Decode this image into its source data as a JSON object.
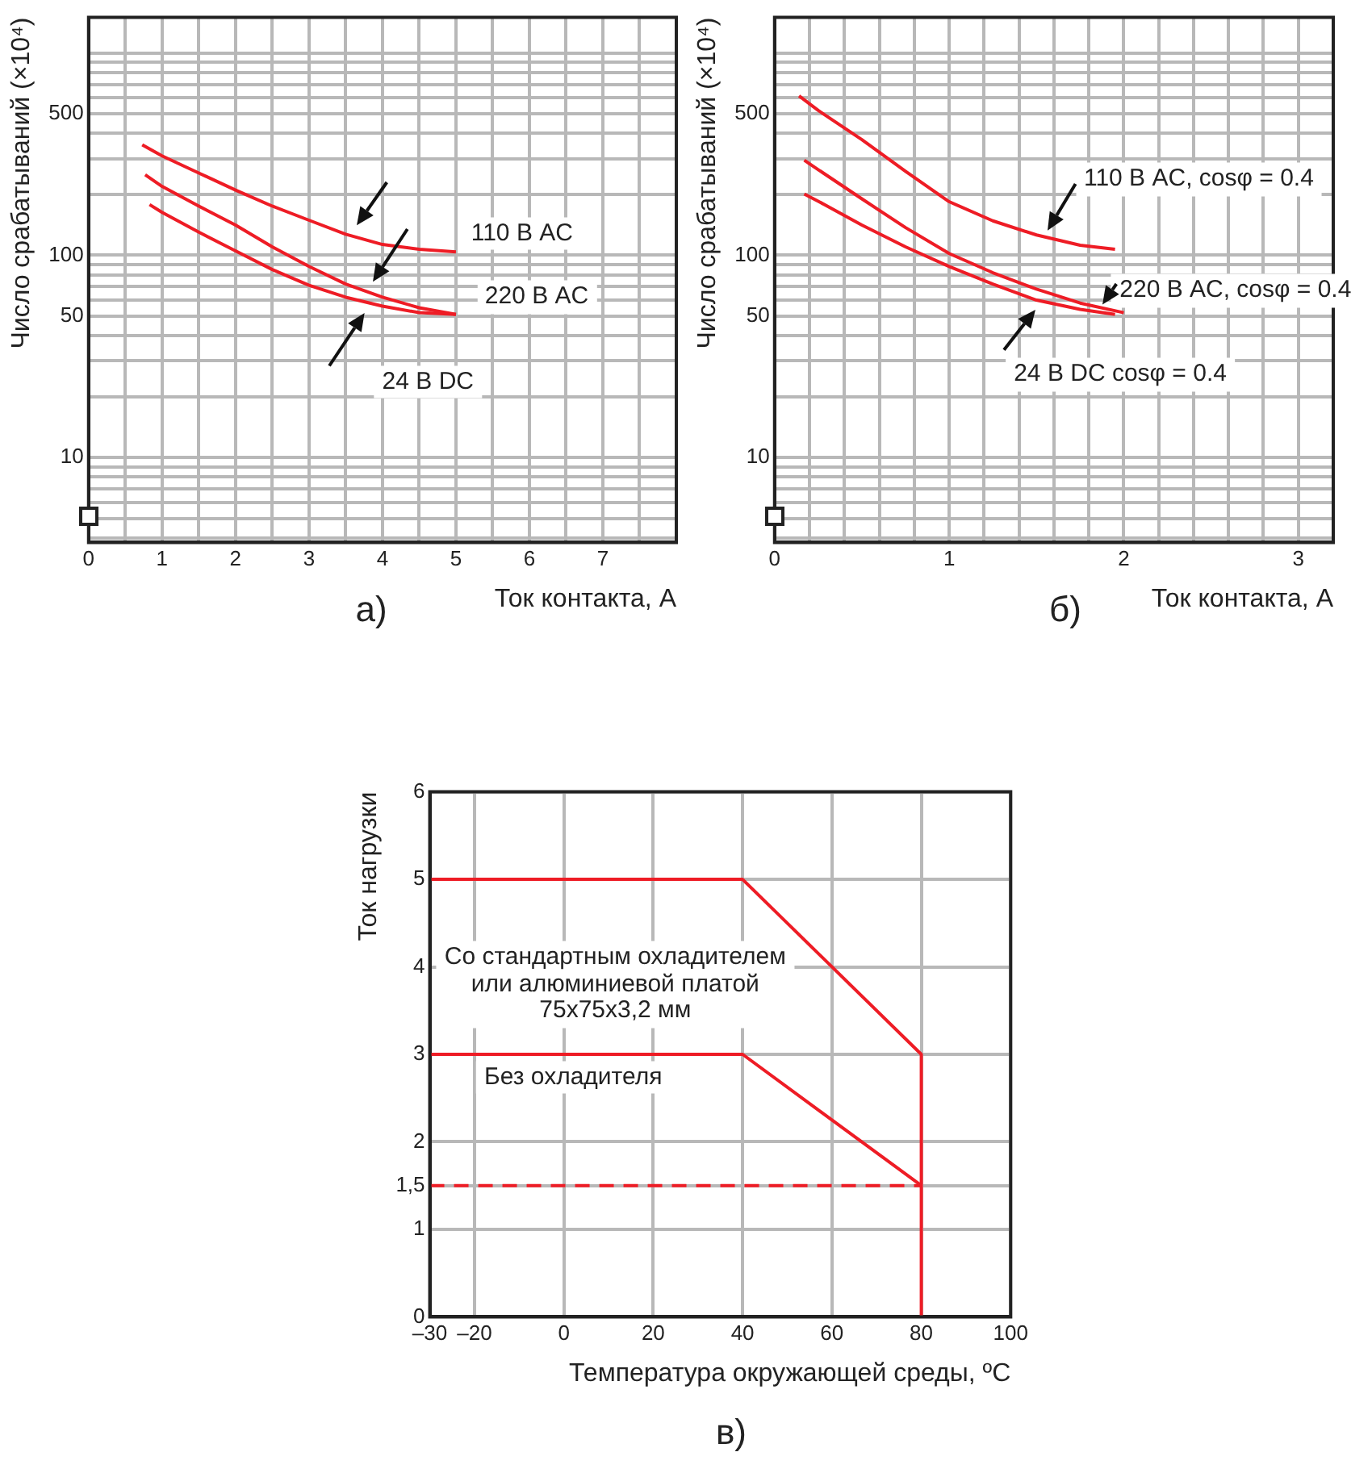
{
  "chart_data": [
    {
      "type": "line",
      "title": "а)",
      "xlabel": "Ток контакта, А",
      "ylabel": "Число срабатываний (×10⁴)",
      "log": "y",
      "grid": true,
      "legend": false,
      "marker": "none",
      "xlim": [
        0,
        8
      ],
      "xticks": [
        0,
        {
          "value": 0.5,
          "label": null
        },
        1,
        {
          "value": 1.5,
          "label": null
        },
        2,
        {
          "value": 2.5,
          "label": null
        },
        3,
        {
          "value": 3.5,
          "label": null
        },
        4,
        {
          "value": 4.5,
          "label": null
        },
        5,
        {
          "value": 5.5,
          "label": null
        },
        6,
        {
          "value": 6.5,
          "label": null
        },
        7,
        {
          "value": 7.5,
          "label": null
        },
        {
          "value": 8,
          "label": null
        }
      ],
      "ylim": [
        3.8,
        1500
      ],
      "yticks": [
        {
          "value": 4,
          "label": null
        },
        {
          "value": 5,
          "label": null
        },
        {
          "value": 6,
          "label": null
        },
        {
          "value": 7,
          "label": null
        },
        {
          "value": 8,
          "label": null
        },
        {
          "value": 9,
          "label": null
        },
        10,
        {
          "value": 20,
          "label": null
        },
        {
          "value": 30,
          "label": null
        },
        {
          "value": 40,
          "label": null
        },
        50,
        {
          "value": 60,
          "label": null
        },
        {
          "value": 70,
          "label": null
        },
        {
          "value": 80,
          "label": null
        },
        {
          "value": 90,
          "label": null
        },
        100,
        {
          "value": 200,
          "label": null
        },
        {
          "value": 300,
          "label": null
        },
        {
          "value": 400,
          "label": null
        },
        500,
        {
          "value": 600,
          "label": null
        },
        {
          "value": 700,
          "label": null
        },
        {
          "value": 800,
          "label": null
        },
        {
          "value": 900,
          "label": null
        },
        {
          "value": 1000,
          "label": null
        }
      ],
      "series": [
        {
          "name": "110 В AC",
          "color": "#ee1c25",
          "x": [
            0.73,
            1,
            1.5,
            2,
            2.5,
            3,
            3.5,
            4,
            4.5,
            5
          ],
          "values": [
            352,
            310,
            255,
            210,
            175,
            149,
            127,
            113,
            107,
            104
          ]
        },
        {
          "name": "220 В AC",
          "color": "#ee1c25",
          "x": [
            0.77,
            1,
            1.5,
            2,
            2.5,
            3,
            3.5,
            4,
            4.5,
            5
          ],
          "values": [
            250,
            219,
            175,
            141,
            110,
            88,
            72,
            62,
            55,
            51
          ]
        },
        {
          "name": "24 В DC",
          "color": "#ee1c25",
          "x": [
            0.83,
            1,
            1.5,
            2,
            2.5,
            3,
            3.5,
            4,
            4.5,
            5
          ],
          "values": [
            178,
            163,
            130,
            105,
            85,
            71,
            62,
            56,
            52,
            51
          ]
        }
      ]
    },
    {
      "type": "line",
      "title": "б)",
      "xlabel": "Ток контакта, А",
      "ylabel": "Число срабатываний (×10⁴)",
      "log": "y",
      "grid": true,
      "legend": false,
      "marker": "none",
      "xlim": [
        0,
        3.2
      ],
      "xticks": [
        0,
        {
          "value": 0.2,
          "label": null
        },
        {
          "value": 0.4,
          "label": null
        },
        {
          "value": 0.6,
          "label": null
        },
        {
          "value": 0.8,
          "label": null
        },
        1,
        {
          "value": 1.2,
          "label": null
        },
        {
          "value": 1.4,
          "label": null
        },
        {
          "value": 1.6,
          "label": null
        },
        {
          "value": 1.8,
          "label": null
        },
        2,
        {
          "value": 2.2,
          "label": null
        },
        {
          "value": 2.4,
          "label": null
        },
        {
          "value": 2.6,
          "label": null
        },
        {
          "value": 2.8,
          "label": null
        },
        3,
        {
          "value": 3.2,
          "label": null
        }
      ],
      "ylim": [
        3.8,
        1500
      ],
      "yticks": [
        {
          "value": 4,
          "label": null
        },
        {
          "value": 5,
          "label": null
        },
        {
          "value": 6,
          "label": null
        },
        {
          "value": 7,
          "label": null
        },
        {
          "value": 8,
          "label": null
        },
        {
          "value": 9,
          "label": null
        },
        10,
        {
          "value": 20,
          "label": null
        },
        {
          "value": 30,
          "label": null
        },
        {
          "value": 40,
          "label": null
        },
        50,
        {
          "value": 60,
          "label": null
        },
        {
          "value": 70,
          "label": null
        },
        {
          "value": 80,
          "label": null
        },
        {
          "value": 90,
          "label": null
        },
        100,
        {
          "value": 200,
          "label": null
        },
        {
          "value": 300,
          "label": null
        },
        {
          "value": 400,
          "label": null
        },
        500,
        {
          "value": 600,
          "label": null
        },
        {
          "value": 700,
          "label": null
        },
        {
          "value": 800,
          "label": null
        },
        {
          "value": 900,
          "label": null
        },
        {
          "value": 1000,
          "label": null
        }
      ],
      "series": [
        {
          "name": "110 В AC, cosφ = 0.4",
          "color": "#ee1c25",
          "x": [
            0.14,
            0.25,
            0.5,
            0.75,
            1,
            1.25,
            1.5,
            1.75,
            1.95
          ],
          "values": [
            614,
            520,
            373,
            260,
            184,
            148,
            126,
            112,
            107
          ]
        },
        {
          "name": "220 В AC, cosφ = 0.4",
          "color": "#ee1c25",
          "x": [
            0.17,
            0.25,
            0.5,
            0.75,
            1,
            1.25,
            1.5,
            1.75,
            2
          ],
          "values": [
            295,
            265,
            190,
            137,
            102,
            82,
            68,
            58,
            52
          ]
        },
        {
          "name": "24 В DC cosφ = 0.4",
          "color": "#ee1c25",
          "x": [
            0.17,
            0.25,
            0.5,
            0.75,
            1,
            1.25,
            1.5,
            1.75,
            1.95
          ],
          "values": [
            201,
            185,
            141,
            110,
            88,
            72,
            60,
            54,
            51
          ]
        }
      ]
    },
    {
      "type": "line",
      "title": "в)",
      "xlabel": "Температура окружающей среды, ºC",
      "ylabel": "Ток нагрузки",
      "grid": true,
      "legend": false,
      "marker": "none",
      "xlim": [
        -30,
        100
      ],
      "xticks": [
        {
          "value": -30,
          "label": "–30"
        },
        {
          "value": -20,
          "label": "–20"
        },
        0,
        20,
        40,
        60,
        80,
        100
      ],
      "ylim": [
        0,
        6
      ],
      "yticks": [
        0,
        1,
        {
          "value": 1.5,
          "label": "1,5"
        },
        2,
        3,
        4,
        5,
        6
      ],
      "series": [
        {
          "name": "Со стандартным охладителем\nили алюминиевой платой\n75x75x3,2 мм",
          "color": "#ee1c25",
          "x": [
            -30,
            40,
            80,
            80
          ],
          "values": [
            5,
            5,
            3,
            0
          ]
        },
        {
          "name": "Без охладителя",
          "color": "#ee1c25",
          "x": [
            -30,
            40,
            80
          ],
          "values": [
            3,
            3,
            1.5
          ]
        },
        {
          "color": "#ee1c25",
          "line_style": "dashed",
          "x": [
            -30,
            80
          ],
          "values": [
            1.5,
            1.5
          ]
        }
      ]
    }
  ]
}
